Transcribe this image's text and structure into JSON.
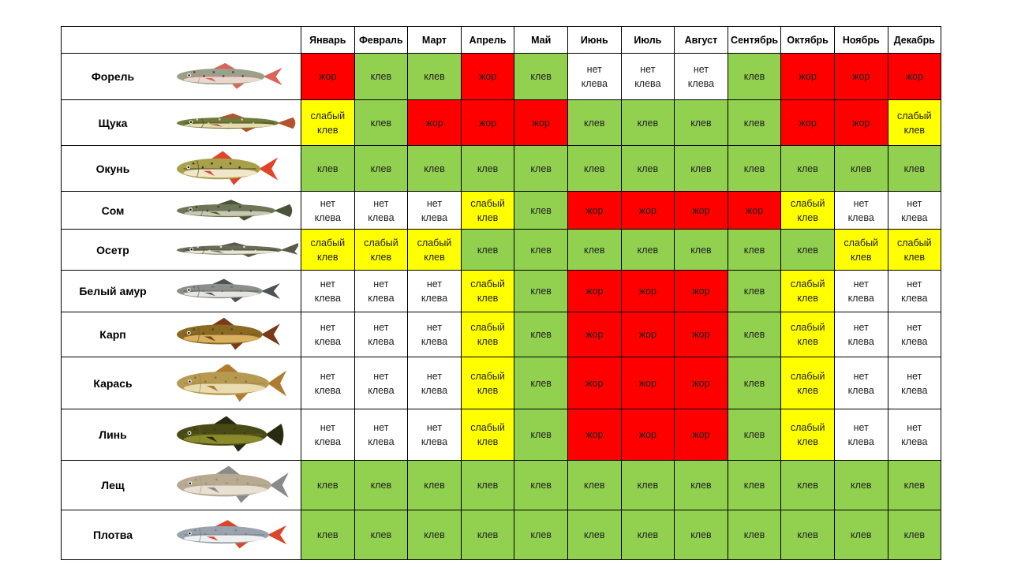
{
  "statuses": {
    "feed": {
      "label": "жор",
      "color": "#ff0000"
    },
    "bite": {
      "label": "клев",
      "color": "#92d050"
    },
    "weak": {
      "label": "слабый клев",
      "color": "#ffff00"
    },
    "none": {
      "label": "нет клева",
      "color": "#ffffff"
    }
  },
  "months": [
    "Январь",
    "Февраль",
    "Март",
    "Апрель",
    "Май",
    "Июнь",
    "Июль",
    "Август",
    "Сентябрь",
    "Октябрь",
    "Ноябрь",
    "Декабрь"
  ],
  "fish": [
    {
      "name": "Форель",
      "icon": "trout-icon",
      "art": {
        "body": "#9aa08a",
        "belly": "#e8d8cc",
        "fin": "#d9645a",
        "spots": "#444",
        "stripe": "#c97a86"
      },
      "months": [
        "feed",
        "bite",
        "bite",
        "feed",
        "bite",
        "none",
        "none",
        "none",
        "bite",
        "feed",
        "feed",
        "feed"
      ]
    },
    {
      "name": "Щука",
      "icon": "pike-icon",
      "art": {
        "body": "#6f7a3a",
        "belly": "#e6dcb0",
        "fin": "#b5532e",
        "spots": "#d8d08a",
        "stripe": "#3b3f1c"
      },
      "months": [
        "weak",
        "bite",
        "feed",
        "feed",
        "feed",
        "bite",
        "bite",
        "bite",
        "bite",
        "feed",
        "feed",
        "weak"
      ]
    },
    {
      "name": "Окунь",
      "icon": "perch-icon",
      "art": {
        "body": "#a9a04a",
        "belly": "#f0e6c8",
        "fin": "#e0452a",
        "spots": "#333",
        "stripe": "#3a3a20"
      },
      "months": [
        "bite",
        "bite",
        "bite",
        "bite",
        "bite",
        "bite",
        "bite",
        "bite",
        "bite",
        "bite",
        "bite",
        "bite"
      ]
    },
    {
      "name": "Сом",
      "icon": "catfish-icon",
      "art": {
        "body": "#6d7658",
        "belly": "#c9c8b0",
        "fin": "#4a5238",
        "spots": "#3c4230",
        "stripe": "#5b6348"
      },
      "months": [
        "none",
        "none",
        "none",
        "weak",
        "bite",
        "feed",
        "feed",
        "feed",
        "feed",
        "weak",
        "none",
        "none"
      ]
    },
    {
      "name": "Осетр",
      "icon": "sturgeon-icon",
      "art": {
        "body": "#6b6b5a",
        "belly": "#e8e4d2",
        "fin": "#5a5a4a",
        "spots": "#e0ddd0",
        "stripe": "#3e3e32"
      },
      "months": [
        "weak",
        "weak",
        "weak",
        "bite",
        "bite",
        "bite",
        "bite",
        "bite",
        "bite",
        "bite",
        "weak",
        "weak"
      ]
    },
    {
      "name": "Белый амур",
      "icon": "grass-carp-icon",
      "art": {
        "body": "#8a8f8a",
        "belly": "#e6e4de",
        "fin": "#4d5257",
        "spots": "#6f7470",
        "stripe": "#55595a"
      },
      "months": [
        "none",
        "none",
        "none",
        "weak",
        "bite",
        "feed",
        "feed",
        "feed",
        "bite",
        "weak",
        "none",
        "none"
      ]
    },
    {
      "name": "Карп",
      "icon": "carp-icon",
      "art": {
        "body": "#8a6a22",
        "belly": "#d8b060",
        "fin": "#7a3a1a",
        "spots": "#5a4214",
        "stripe": "#6a4e18"
      },
      "months": [
        "none",
        "none",
        "none",
        "weak",
        "bite",
        "feed",
        "feed",
        "feed",
        "bite",
        "weak",
        "none",
        "none"
      ]
    },
    {
      "name": "Карась",
      "icon": "crucian-icon",
      "art": {
        "body": "#b69a52",
        "belly": "#e8dcb0",
        "fin": "#b07a30",
        "spots": "#8a7438",
        "stripe": "#9a8040"
      },
      "months": [
        "none",
        "none",
        "none",
        "weak",
        "bite",
        "feed",
        "feed",
        "feed",
        "bite",
        "weak",
        "none",
        "none"
      ]
    },
    {
      "name": "Линь",
      "icon": "tench-icon",
      "art": {
        "body": "#4a4a16",
        "belly": "#8a8a2a",
        "fin": "#2a2a10",
        "spots": "#3a3a12",
        "stripe": "#6a6a20"
      },
      "months": [
        "none",
        "none",
        "none",
        "weak",
        "bite",
        "feed",
        "feed",
        "feed",
        "bite",
        "weak",
        "none",
        "none"
      ]
    },
    {
      "name": "Лещ",
      "icon": "bream-icon",
      "art": {
        "body": "#b8aa90",
        "belly": "#e6dfd2",
        "fin": "#8a8a8a",
        "spots": "#9a8e78",
        "stripe": "#a89a80"
      },
      "months": [
        "bite",
        "bite",
        "bite",
        "bite",
        "bite",
        "bite",
        "bite",
        "bite",
        "bite",
        "bite",
        "bite",
        "bite"
      ]
    },
    {
      "name": "Плотва",
      "icon": "roach-icon",
      "art": {
        "body": "#9aa3ad",
        "belly": "#eef0f2",
        "fin": "#d9462a",
        "spots": "#7a828a",
        "stripe": "#6a7480"
      },
      "months": [
        "bite",
        "bite",
        "bite",
        "bite",
        "bite",
        "bite",
        "bite",
        "bite",
        "bite",
        "bite",
        "bite",
        "bite"
      ]
    }
  ]
}
